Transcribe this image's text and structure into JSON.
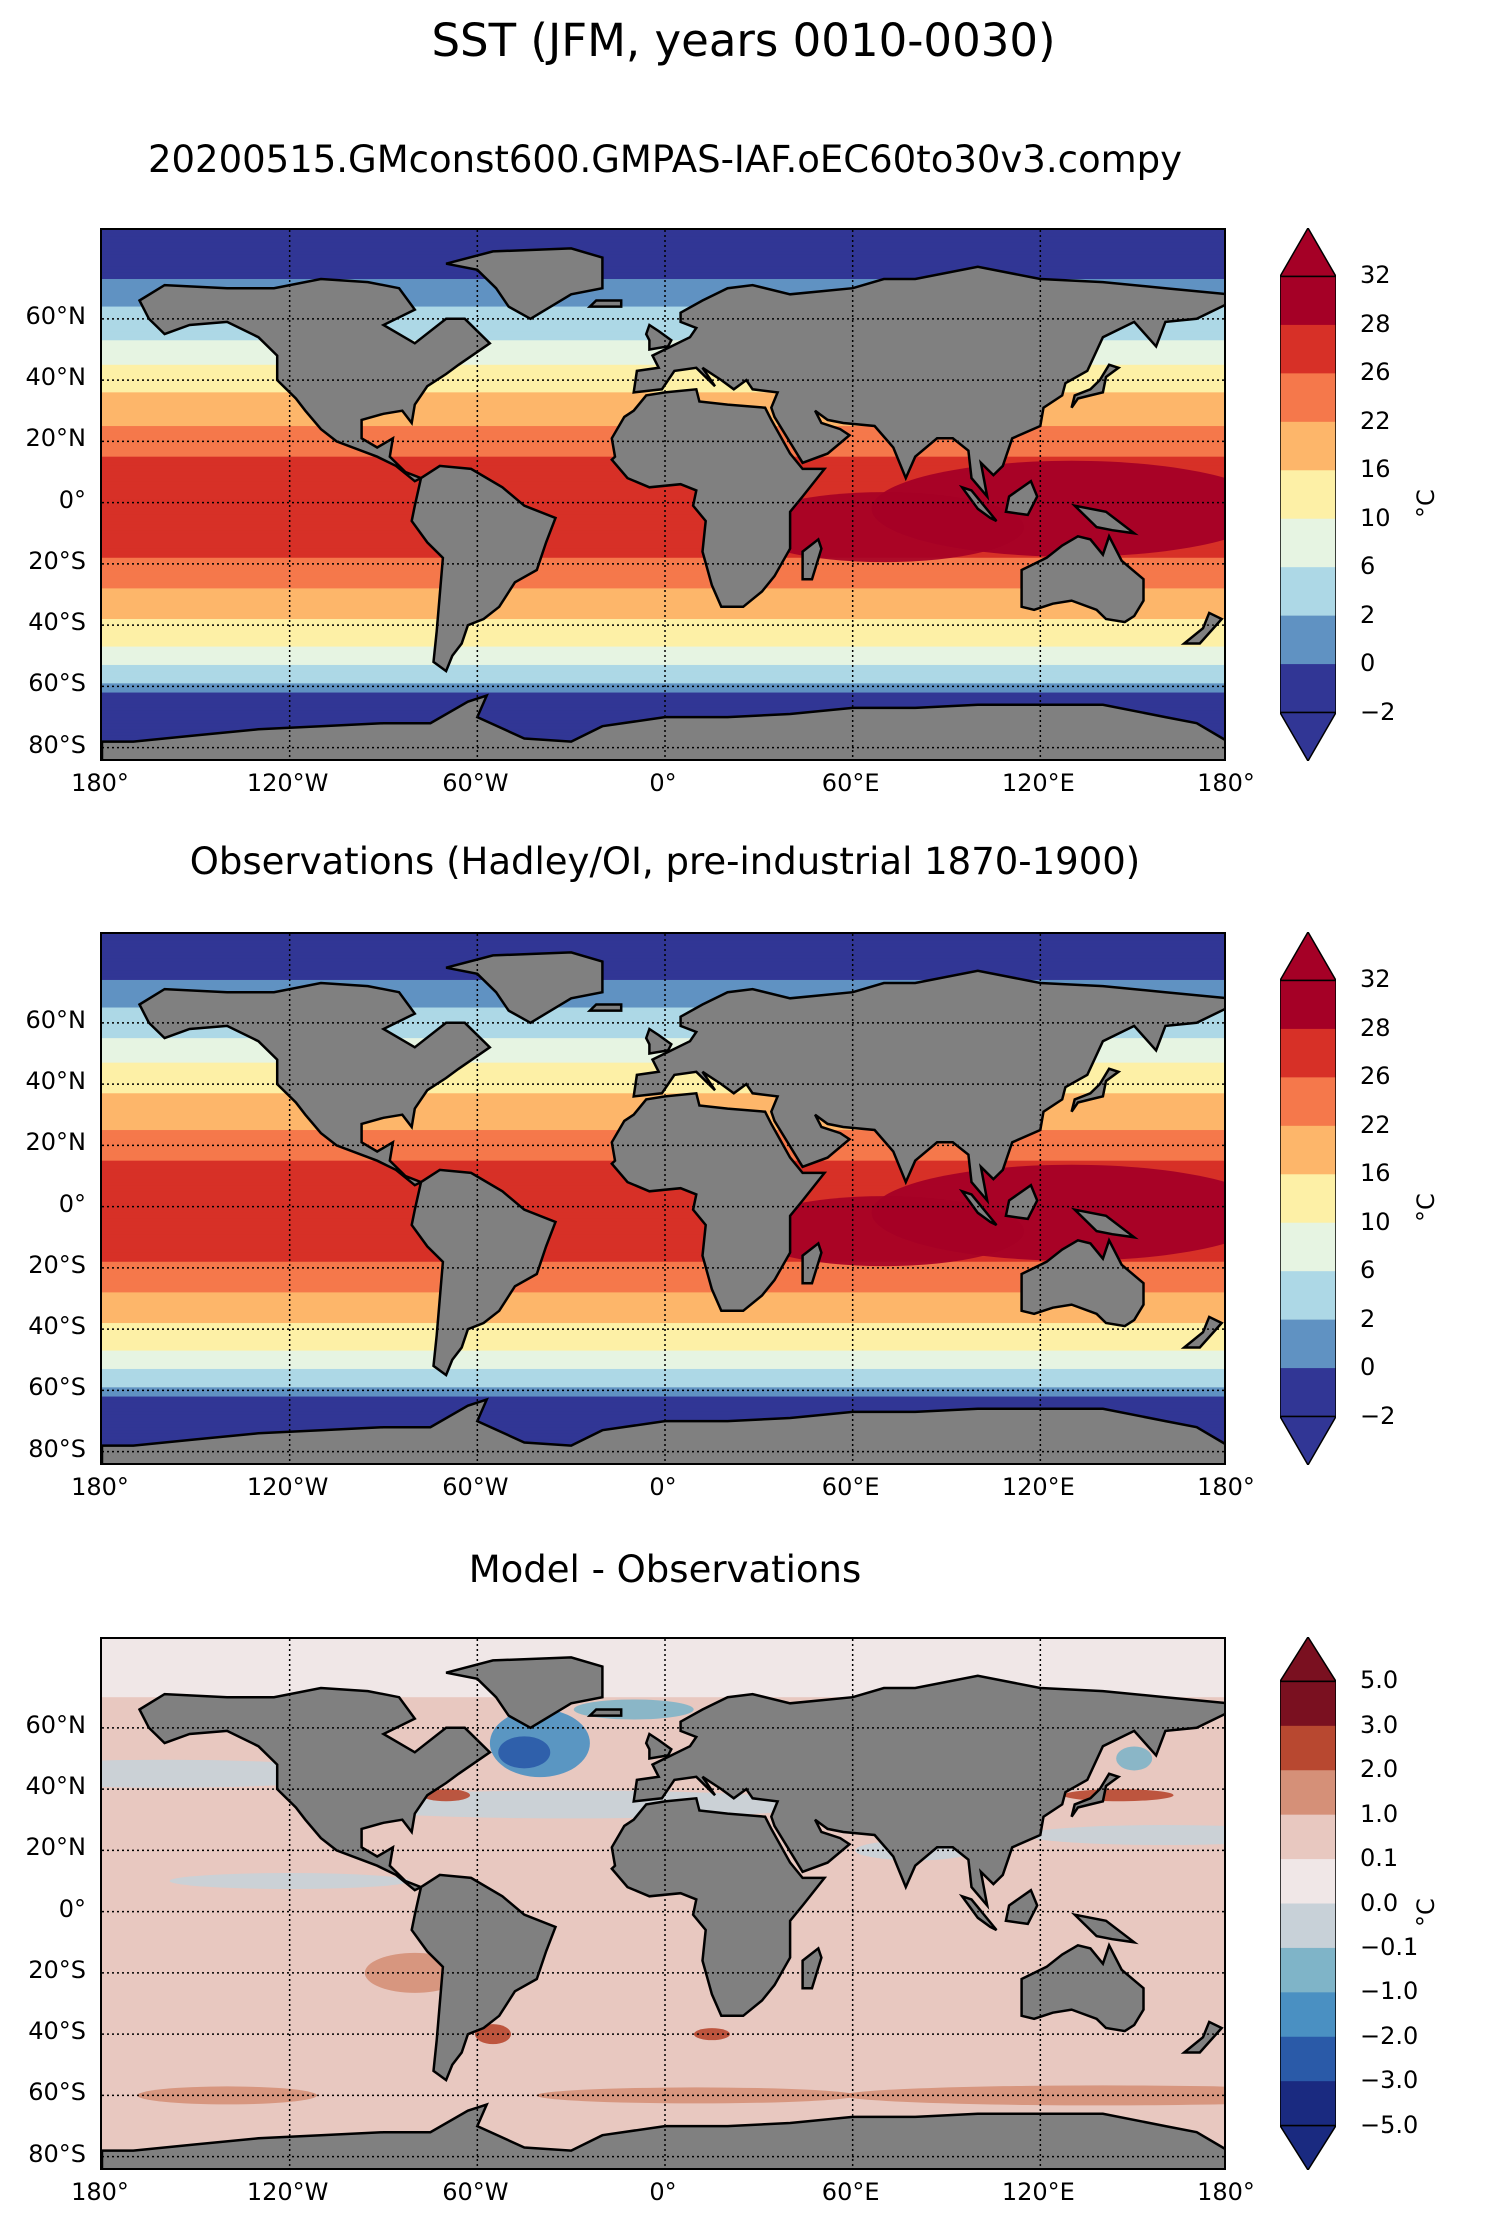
{
  "figure": {
    "suptitle": "SST (JFM, years 0010-0030)"
  },
  "axes": {
    "lat_labels": [
      "60°N",
      "40°N",
      "20°N",
      "0°",
      "20°S",
      "40°S",
      "60°S",
      "80°S"
    ],
    "lon_labels": [
      "180°",
      "120°W",
      "60°W",
      "0°",
      "60°E",
      "120°E",
      "180°"
    ]
  },
  "colors": {
    "land": "#808080",
    "abs_palette": [
      "#313695",
      "#6092c2",
      "#add8e6",
      "#e6f4e2",
      "#fdf0a6",
      "#fdb66a",
      "#f5784b",
      "#d73027",
      "#a50026"
    ],
    "diff_palette": [
      "#1a2a80",
      "#2a5aa8",
      "#4a90c2",
      "#7fb4c8",
      "#c8d1d8",
      "#f0e7e7",
      "#e8c8c0",
      "#d59078",
      "#b84830",
      "#7a1020"
    ]
  },
  "chart_data": [
    {
      "type": "heatmap",
      "title": "20200515.GMconst600.GMPAS-IAF.oEC60to30v3.compy",
      "colorbar_ticks": [
        "32",
        "28",
        "26",
        "22",
        "16",
        "10",
        "6",
        "2",
        "0",
        "−2"
      ],
      "units": "°C",
      "extend": "both",
      "zonal_profile": {
        "lat": [
          80,
          65,
          55,
          45,
          35,
          25,
          15,
          5,
          -5,
          -15,
          -25,
          -35,
          -45,
          -55,
          -62,
          -70
        ],
        "sst": [
          -1.5,
          1.5,
          5,
          10,
          17,
          22,
          26,
          27.5,
          28,
          27,
          24,
          18,
          11,
          5,
          0,
          -1.5
        ]
      }
    },
    {
      "type": "heatmap",
      "title": "Observations (Hadley/OI, pre-industrial 1870-1900)",
      "colorbar_ticks": [
        "32",
        "28",
        "26",
        "22",
        "16",
        "10",
        "6",
        "2",
        "0",
        "−2"
      ],
      "units": "°C",
      "extend": "both",
      "zonal_profile": {
        "lat": [
          80,
          65,
          55,
          45,
          35,
          25,
          15,
          5,
          -5,
          -15,
          -25,
          -35,
          -45,
          -55,
          -62,
          -70
        ],
        "sst": [
          -1.5,
          2,
          6,
          11,
          17,
          22,
          26,
          27.5,
          28,
          27,
          24,
          18,
          11,
          5,
          0,
          -1.5
        ]
      }
    },
    {
      "type": "heatmap",
      "title": "Model - Observations",
      "colorbar_ticks": [
        "5.0",
        "3.0",
        "2.0",
        "1.0",
        "0.1",
        "0.0",
        "−0.1",
        "−1.0",
        "−2.0",
        "−3.0",
        "−5.0"
      ],
      "units": "°C",
      "extend": "both"
    }
  ]
}
